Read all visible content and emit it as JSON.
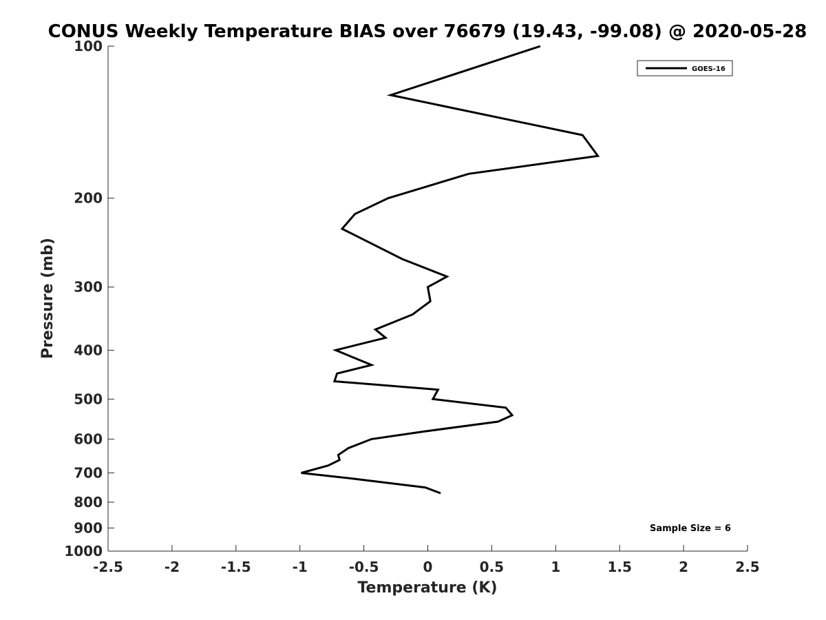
{
  "chart_data": {
    "type": "line",
    "title": "CONUS Weekly Temperature BIAS over 76679 (19.43, -99.08) @ 2020-05-28",
    "xlabel": "Temperature (K)",
    "ylabel": "Pressure (mb)",
    "xlim": [
      -2.5,
      2.5
    ],
    "ylim": [
      1000,
      100
    ],
    "y_scale": "log",
    "y_reversed": true,
    "grid": false,
    "legend_position": "top-right",
    "x_ticks": [
      -2.5,
      -2,
      -1.5,
      -1,
      -0.5,
      0,
      0.5,
      1,
      1.5,
      2,
      2.5
    ],
    "x_tick_labels": [
      "-2.5",
      "-2",
      "-1.5",
      "-1",
      "-0.5",
      "0",
      "0.5",
      "1",
      "1.5",
      "2",
      "2.5"
    ],
    "y_ticks": [
      100,
      200,
      300,
      400,
      500,
      600,
      700,
      800,
      900,
      1000
    ],
    "y_tick_labels": [
      "100",
      "200",
      "300",
      "400",
      "500",
      "600",
      "700",
      "800",
      "900",
      "1000"
    ],
    "series": [
      {
        "name": "GOES-16",
        "color": "#000000",
        "points": [
          {
            "x": 0.88,
            "y": 100
          },
          {
            "x": -0.29,
            "y": 125
          },
          {
            "x": 1.21,
            "y": 150
          },
          {
            "x": 1.33,
            "y": 165
          },
          {
            "x": 0.32,
            "y": 179
          },
          {
            "x": -0.31,
            "y": 200
          },
          {
            "x": -0.57,
            "y": 215
          },
          {
            "x": -0.67,
            "y": 230
          },
          {
            "x": -0.2,
            "y": 264
          },
          {
            "x": 0.15,
            "y": 286
          },
          {
            "x": 0.0,
            "y": 300
          },
          {
            "x": 0.02,
            "y": 320
          },
          {
            "x": -0.12,
            "y": 340
          },
          {
            "x": -0.41,
            "y": 364
          },
          {
            "x": -0.33,
            "y": 378
          },
          {
            "x": -0.72,
            "y": 400
          },
          {
            "x": -0.44,
            "y": 428
          },
          {
            "x": -0.71,
            "y": 445
          },
          {
            "x": -0.73,
            "y": 461
          },
          {
            "x": 0.08,
            "y": 479
          },
          {
            "x": 0.04,
            "y": 500
          },
          {
            "x": 0.61,
            "y": 520
          },
          {
            "x": 0.66,
            "y": 538
          },
          {
            "x": 0.55,
            "y": 554
          },
          {
            "x": -0.04,
            "y": 580
          },
          {
            "x": -0.44,
            "y": 600
          },
          {
            "x": -0.62,
            "y": 625
          },
          {
            "x": -0.7,
            "y": 645
          },
          {
            "x": -0.69,
            "y": 660
          },
          {
            "x": -0.78,
            "y": 677
          },
          {
            "x": -0.99,
            "y": 700
          },
          {
            "x": -0.6,
            "y": 718
          },
          {
            "x": -0.02,
            "y": 748
          },
          {
            "x": 0.1,
            "y": 768
          }
        ]
      }
    ],
    "annotations": [
      "Sample Size = 6"
    ]
  }
}
